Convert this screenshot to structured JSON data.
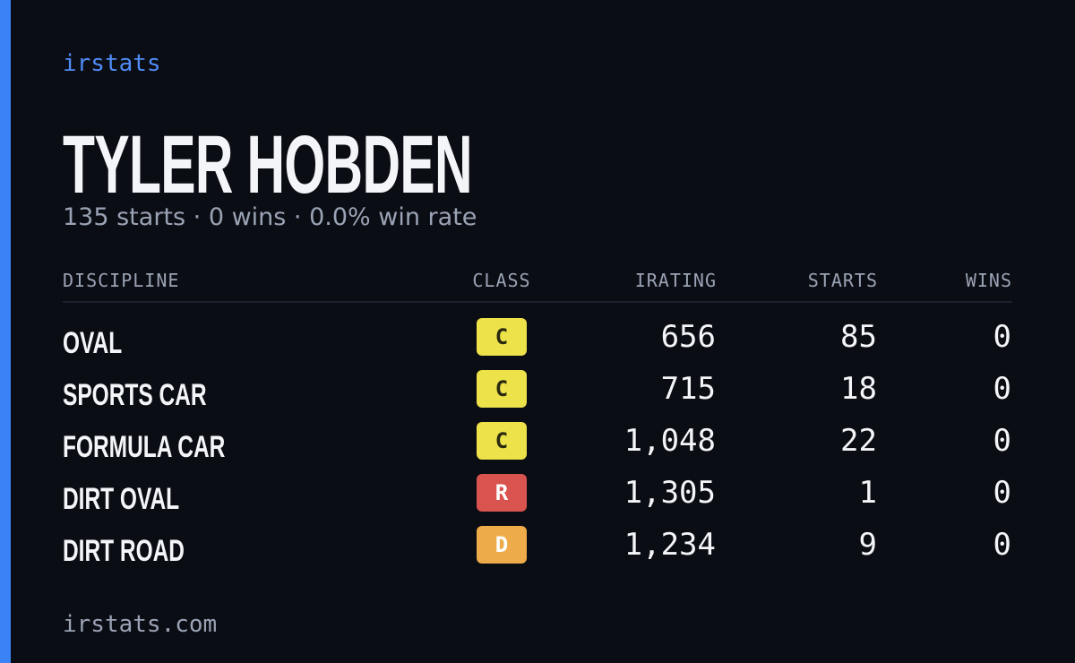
{
  "brand": "irstats",
  "name": "TYLER HOBDEN",
  "summary": "135 starts · 0 wins · 0.0% win rate",
  "table": {
    "headers": [
      "DISCIPLINE",
      "CLASS",
      "IRATING",
      "STARTS",
      "WINS"
    ],
    "rows": [
      [
        "OVAL",
        "C",
        "656",
        "85",
        "0"
      ],
      [
        "SPORTS CAR",
        "C",
        "715",
        "18",
        "0"
      ],
      [
        "FORMULA CAR",
        "C",
        "1,048",
        "22",
        "0"
      ],
      [
        "DIRT OVAL",
        "R",
        "1,305",
        "1",
        "0"
      ],
      [
        "DIRT ROAD",
        "D",
        "1,234",
        "9",
        "0"
      ]
    ],
    "badge_colors": [
      {
        "background": "#ede24a",
        "text": "#2a2a10"
      },
      {
        "background": "#ede24a",
        "text": "#2a2a10"
      },
      {
        "background": "#ede24a",
        "text": "#2a2a10"
      },
      {
        "background": "#d9534f",
        "text": "#ffffff"
      },
      {
        "background": "#eeab4a",
        "text": "#ffffff"
      }
    ]
  },
  "footer": "irstats.com"
}
